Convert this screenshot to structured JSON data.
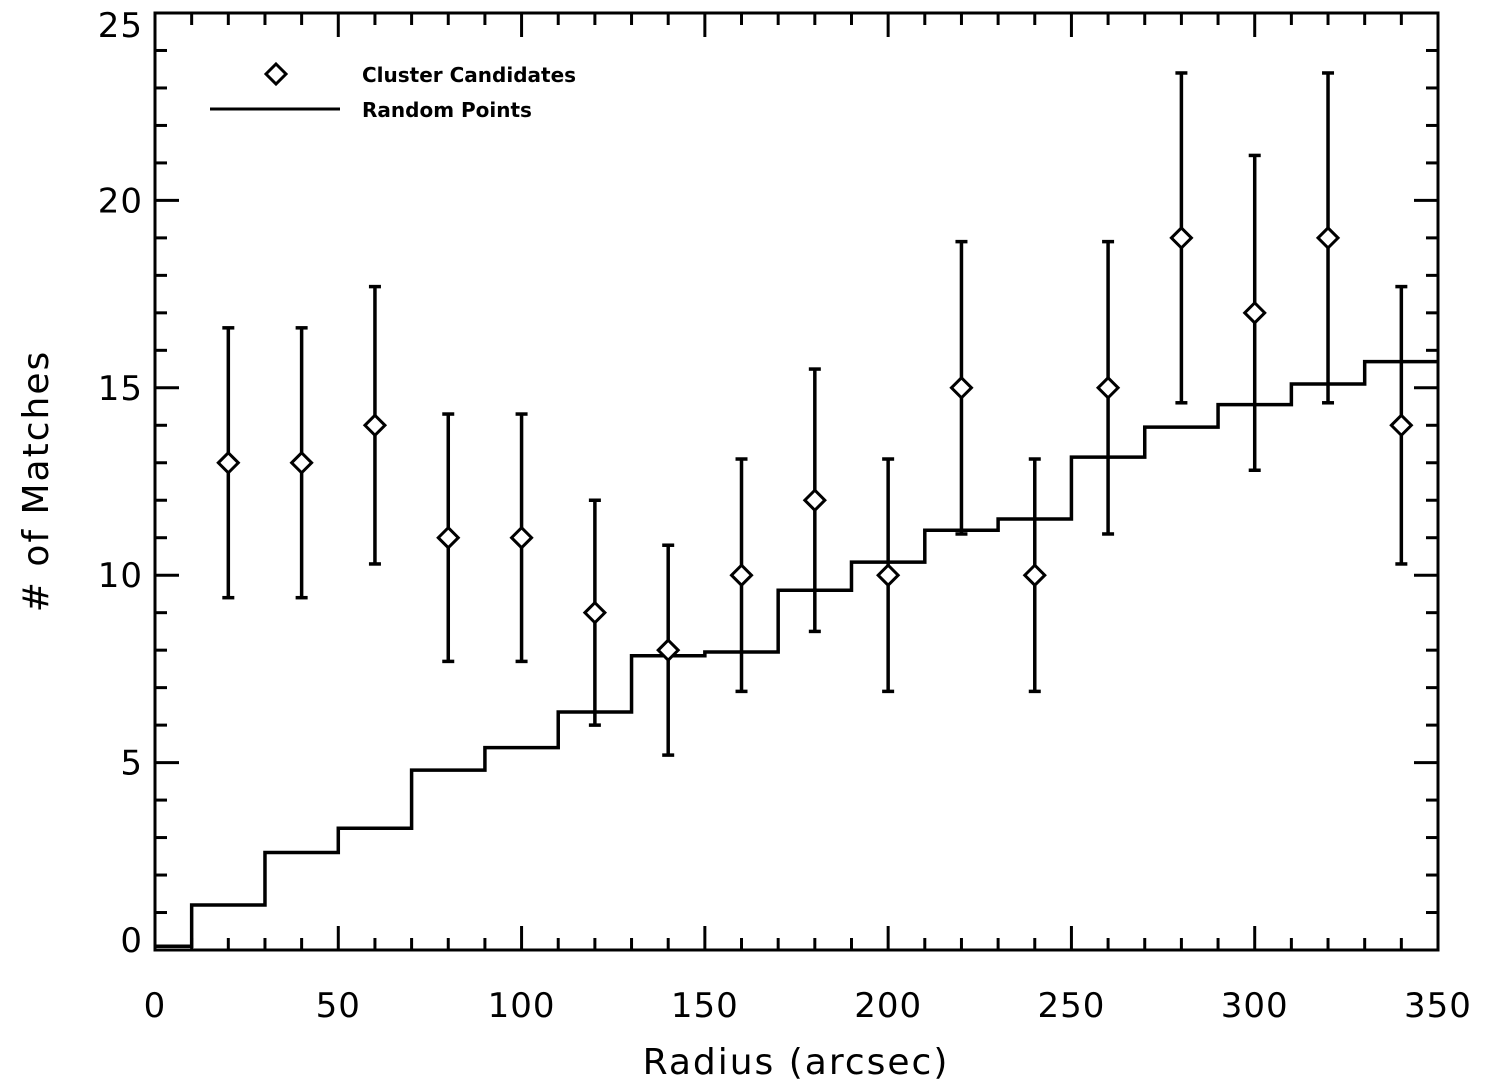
{
  "chart_data": {
    "type": "scatter",
    "xlabel": "Radius (arcsec)",
    "ylabel": "# of Matches",
    "xlim": [
      0,
      350
    ],
    "ylim": [
      0,
      25
    ],
    "x_ticks": [
      0,
      50,
      100,
      150,
      200,
      250,
      300,
      350
    ],
    "y_ticks": [
      0,
      5,
      10,
      15,
      20,
      25
    ],
    "x_tick_labels": [
      "0",
      "50",
      "100",
      "150",
      "200",
      "250",
      "300",
      "350"
    ],
    "y_tick_labels": [
      "0",
      "5",
      "10",
      "15",
      "20",
      "25"
    ],
    "grid": false,
    "legend_position": "top-left",
    "series": [
      {
        "name": "Cluster Candidates",
        "marker": "diamond",
        "x": [
          20,
          40,
          60,
          80,
          100,
          120,
          140,
          160,
          180,
          200,
          220,
          240,
          260,
          280,
          300,
          320,
          340
        ],
        "y": [
          13,
          13,
          14,
          11,
          11,
          9,
          8,
          10,
          12,
          10,
          15,
          10,
          15,
          19,
          17,
          19,
          14
        ],
        "y_err": [
          3.6,
          3.6,
          3.7,
          3.3,
          3.3,
          3.0,
          2.8,
          3.1,
          3.5,
          3.1,
          3.9,
          3.1,
          3.9,
          4.4,
          4.2,
          4.4,
          3.7
        ]
      },
      {
        "name": "Random Points",
        "style": "step",
        "bin_edges": [
          0,
          10,
          30,
          50,
          70,
          90,
          110,
          130,
          150,
          170,
          190,
          210,
          230,
          250,
          270,
          290,
          310,
          330,
          350
        ],
        "values": [
          0.1,
          1.2,
          2.6,
          3.25,
          4.8,
          5.4,
          6.35,
          7.85,
          7.95,
          9.6,
          10.35,
          11.2,
          11.5,
          13.15,
          13.95,
          14.55,
          15.1,
          15.7
        ]
      }
    ]
  }
}
